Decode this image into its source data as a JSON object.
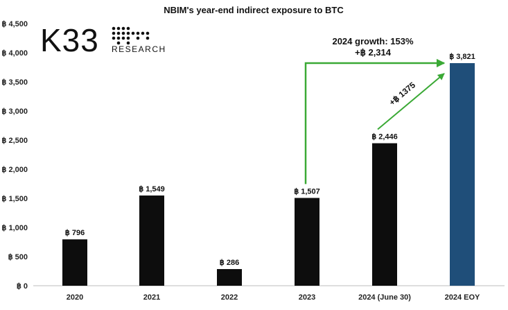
{
  "chart_data": {
    "type": "bar",
    "title": "NBIM's year-end indirect exposure to BTC",
    "categories": [
      "2020",
      "2021",
      "2022",
      "2023",
      "2024 (June 30)",
      "2024 EOY"
    ],
    "values": [
      796,
      1549,
      286,
      1507,
      2446,
      3821
    ],
    "data_labels": [
      "฿ 796",
      "฿ 1,549",
      "฿ 286",
      "฿ 1,507",
      "฿ 2,446",
      "฿ 3,821"
    ],
    "ylim": [
      0,
      4500
    ],
    "y_ticks": [
      0,
      500,
      1000,
      1500,
      2000,
      2500,
      3000,
      3500,
      4000,
      4500
    ],
    "y_tick_labels": [
      "฿ 0",
      "฿ 500",
      "฿ 1,000",
      "฿ 1,500",
      "฿ 2,000",
      "฿ 2,500",
      "฿ 3,000",
      "฿ 3,500",
      "฿ 4,000",
      "฿ 4,500"
    ],
    "bar_colors": [
      "#0d0d0d",
      "#0d0d0d",
      "#0d0d0d",
      "#0d0d0d",
      "#0d0d0d",
      "#1f4e79"
    ],
    "grid": false,
    "annotations": {
      "growth_line1": "2024 growth: 153%",
      "growth_line2": "+฿ 2,314",
      "diag_label": "+฿ 1375",
      "arrow_color": "#3aa935"
    }
  },
  "logo": {
    "main": "K33",
    "sub": "RESEARCH"
  }
}
